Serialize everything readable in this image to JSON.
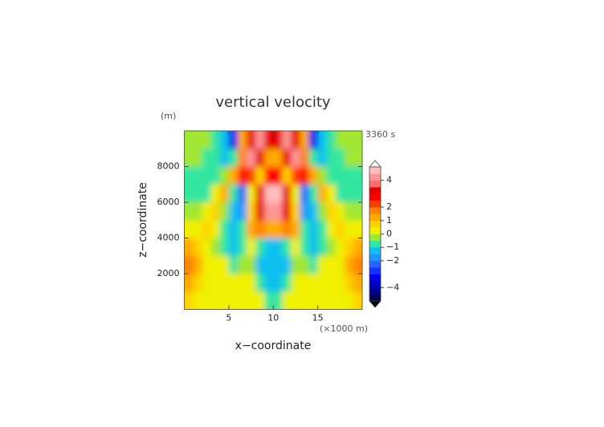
{
  "chart_data": {
    "type": "contour",
    "title": "vertical velocity",
    "y_unit": "(m)",
    "time_label": "3360 s",
    "xlabel": "x−coordinate",
    "ylabel": "z−coordinate",
    "x_unit": "(×1000 m)",
    "xlim": [
      0,
      20
    ],
    "ylim": [
      0,
      10000
    ],
    "xticks": [
      5,
      10,
      15
    ],
    "yticks": [
      2000,
      4000,
      6000,
      8000
    ],
    "x": [
      0.5,
      1.5,
      2.5,
      3.5,
      4.5,
      5.5,
      6.5,
      7.5,
      8.5,
      9.5,
      10.5,
      11.5,
      12.5,
      13.5,
      14.5,
      15.5,
      16.5,
      17.5,
      18.5,
      19.5
    ],
    "z": [
      500,
      1500,
      2500,
      3500,
      4500,
      5500,
      6500,
      7500,
      8500,
      9500
    ],
    "values": [
      [
        0.7,
        0.25,
        0.25,
        0.25,
        0.25,
        0.25,
        0.25,
        0.25,
        0.25,
        -0.75,
        -0.75,
        0.25,
        0.25,
        0.25,
        0.25,
        0.25,
        0.25,
        0.25,
        0.25,
        0.7
      ],
      [
        1.2,
        0.7,
        0.25,
        0.25,
        0.25,
        0.25,
        0.25,
        0.25,
        -0.75,
        -1.2,
        -1.2,
        -0.75,
        0.25,
        0.25,
        0.25,
        0.25,
        0.25,
        0.25,
        0.7,
        1.2
      ],
      [
        1.7,
        1.2,
        0.25,
        0.25,
        0.25,
        -0.75,
        -0.25,
        -0.25,
        -1.2,
        -1.2,
        -1.2,
        -1.2,
        -0.25,
        -0.25,
        -0.75,
        0.25,
        0.25,
        0.25,
        1.2,
        1.7
      ],
      [
        1.2,
        0.7,
        0.25,
        -0.25,
        -0.75,
        -1.2,
        -0.75,
        0.25,
        -0.75,
        -1.2,
        -1.2,
        -0.75,
        0.25,
        -0.75,
        -1.2,
        -0.75,
        -0.25,
        0.25,
        0.7,
        1.2
      ],
      [
        0.25,
        0.25,
        0.7,
        0.25,
        -0.75,
        -1.2,
        -0.75,
        1.2,
        1.7,
        1.2,
        1.2,
        1.7,
        1.2,
        -0.75,
        -1.2,
        -0.75,
        0.25,
        0.7,
        0.25,
        0.25
      ],
      [
        -0.25,
        -0.25,
        0.25,
        0.7,
        -0.25,
        -1.2,
        -1.7,
        0.7,
        3,
        4.2,
        4.2,
        3,
        0.7,
        -1.7,
        -1.2,
        -0.25,
        0.7,
        0.25,
        -0.25,
        -0.25
      ],
      [
        -0.75,
        -0.75,
        -0.75,
        0.25,
        1.2,
        -0.75,
        -2.5,
        0.25,
        3,
        4.6,
        4.6,
        3,
        0.25,
        -2.5,
        -0.75,
        1.2,
        0.25,
        -0.75,
        -0.75,
        -0.75
      ],
      [
        -0.75,
        -0.75,
        -0.75,
        -0.75,
        -0.25,
        1.2,
        2.8,
        2.2,
        0.7,
        2.8,
        2.8,
        0.7,
        2.2,
        2.8,
        1.2,
        -0.25,
        -0.75,
        -0.75,
        -0.75,
        -0.75
      ],
      [
        -0.25,
        -0.25,
        -0.75,
        -0.75,
        -1.2,
        -0.75,
        1.8,
        4.2,
        3,
        1.2,
        1.2,
        3,
        4.2,
        1.8,
        -0.75,
        -1.2,
        -0.75,
        -0.75,
        -0.25,
        -0.25
      ],
      [
        -0.25,
        -0.25,
        -0.25,
        -0.75,
        -1.2,
        -3.2,
        1,
        3.2,
        4.2,
        3.2,
        3.2,
        4.2,
        3.2,
        1,
        -3.2,
        -1.2,
        -0.75,
        -0.25,
        -0.25,
        -0.25
      ]
    ],
    "levels": [
      -5,
      -4.5,
      -4,
      -3.5,
      -3,
      -2.5,
      -2,
      -1.5,
      -1,
      -0.5,
      0,
      0.5,
      1,
      1.5,
      2,
      2.5,
      3,
      3.5,
      4,
      4.5,
      5
    ],
    "colors": [
      "#00005a",
      "#000090",
      "#0000c0",
      "#0000ee",
      "#1432ff",
      "#2864ff",
      "#1e96ff",
      "#10c0f0",
      "#30e6a0",
      "#a0e632",
      "#f0f000",
      "#ffd200",
      "#ffaa00",
      "#ff8200",
      "#ff3c00",
      "#ff0000",
      "#e60000",
      "#ff6e6e",
      "#ff9696",
      "#ffbebe"
    ],
    "colorbar_ticks": [
      {
        "value": -4,
        "label": "−4"
      },
      {
        "value": -2,
        "label": "−2"
      },
      {
        "value": -1,
        "label": "−1"
      },
      0,
      1,
      2,
      4
    ]
  }
}
